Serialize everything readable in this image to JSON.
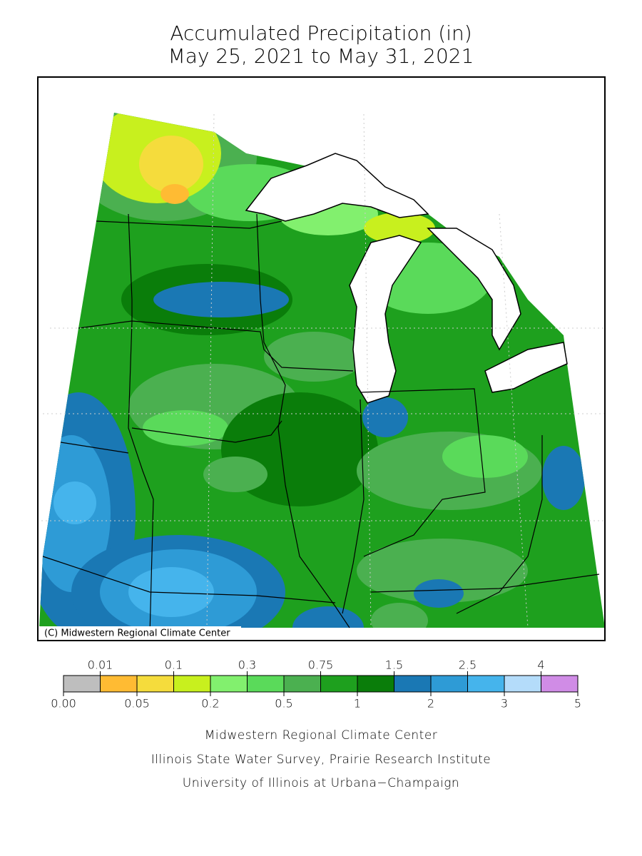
{
  "title": [
    "Accumulated Precipitation (in)",
    "May 25, 2021 to May 31, 2021"
  ],
  "map": {
    "credit": "(C) Midwestern Regional Climate Center"
  },
  "legend": {
    "ticks": [
      {
        "value": 0,
        "label": "0.00"
      },
      0.01,
      0.05,
      0.1,
      0.2,
      0.3,
      0.5,
      0.75,
      1,
      1.5,
      2,
      2.5,
      3,
      4,
      5
    ],
    "colors": [
      "#bebebe",
      "#ffbb33",
      "#f5dc3c",
      "#c8f01e",
      "#82f06e",
      "#5ada5a",
      "#4bb050",
      "#1ea01e",
      "#0a7d0a",
      "#1a78b4",
      "#2e9bd6",
      "#45b4ec",
      "#b4dcfa",
      "#d08ce6"
    ]
  },
  "footer": [
    "Midwestern Regional Climate Center",
    "Illinois State Water Survey, Prairie Research Institute",
    "University of Illinois at Urbana−Champaign"
  ]
}
